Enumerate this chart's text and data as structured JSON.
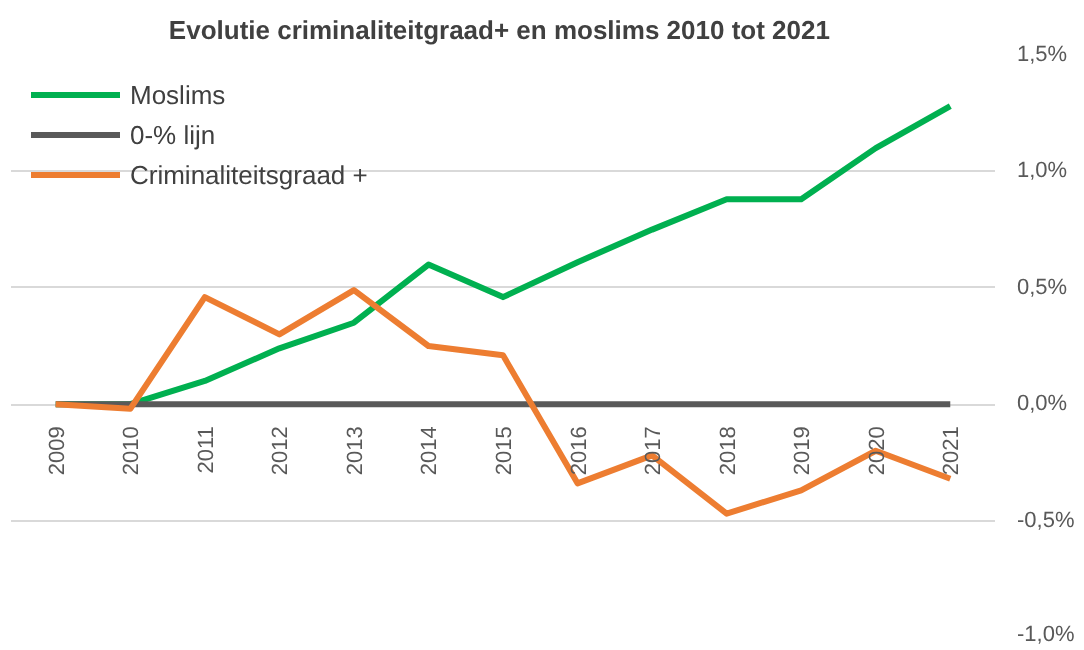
{
  "chart_data": {
    "type": "line",
    "title": "Evolutie criminaliteitgraad+  en moslims 2010 tot 2021",
    "categories": [
      "2009",
      "2010",
      "2011",
      "2012",
      "2013",
      "2014",
      "2015",
      "2016",
      "2017",
      "2018",
      "2019",
      "2020",
      "2021"
    ],
    "series": [
      {
        "name": "Moslims",
        "color": "#00b050",
        "values": [
          0,
          0,
          0.1,
          0.24,
          0.35,
          0.6,
          0.46,
          0.61,
          0.75,
          0.88,
          0.88,
          1.1,
          1.28
        ]
      },
      {
        "name": "0-% lijn",
        "color": "#595959",
        "values": [
          0,
          0,
          0,
          0,
          0,
          0,
          0,
          0,
          0,
          0,
          0,
          0,
          0
        ]
      },
      {
        "name": "Criminaliteitsgraad +",
        "color": "#ed7d31",
        "values": [
          0,
          -0.02,
          0.46,
          0.3,
          0.49,
          0.25,
          0.21,
          -0.34,
          -0.22,
          -0.47,
          -0.37,
          -0.2,
          -0.32
        ]
      }
    ],
    "ylim": [
      -1.0,
      1.5
    ],
    "yticks": [
      {
        "value": -1.0,
        "label": "-1,0%"
      },
      {
        "value": -0.5,
        "label": "-0,5%"
      },
      {
        "value": 0,
        "label": "0,0%"
      },
      {
        "value": 0.5,
        "label": "0,5%"
      },
      {
        "value": 1.0,
        "label": "1,0%"
      },
      {
        "value": 1.5,
        "label": "1,5%"
      }
    ],
    "grid": "y",
    "legend": "top left",
    "line_style": "solid"
  }
}
